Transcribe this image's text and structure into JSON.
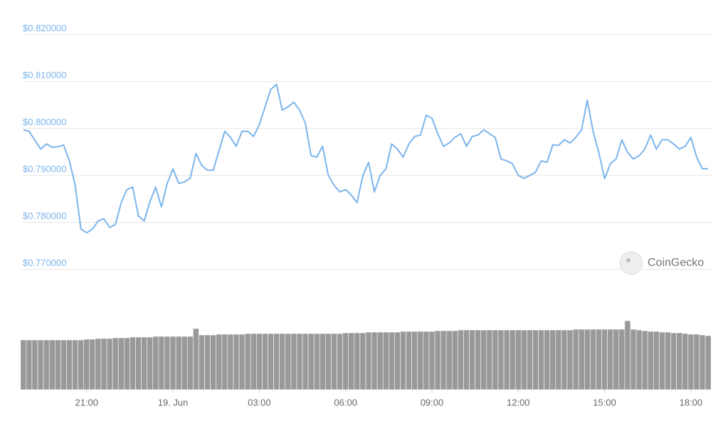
{
  "chart_data": {
    "type": "line",
    "watermark": "CoinGecko",
    "xlim": [
      18.78,
      42.72
    ],
    "xticks": [
      {
        "value": 21,
        "label": "21:00"
      },
      {
        "value": 24,
        "label": "19. Jun"
      },
      {
        "value": 27,
        "label": "03:00"
      },
      {
        "value": 30,
        "label": "06:00"
      },
      {
        "value": 33,
        "label": "09:00"
      },
      {
        "value": 36,
        "label": "12:00"
      },
      {
        "value": 39,
        "label": "15:00"
      },
      {
        "value": 42,
        "label": "18:00"
      }
    ],
    "ylim": [
      0.7677,
      0.8222
    ],
    "yticks": [
      {
        "value": 0.77,
        "label": "$0.770000"
      },
      {
        "value": 0.78,
        "label": "$0.780000"
      },
      {
        "value": 0.79,
        "label": "$0.790000"
      },
      {
        "value": 0.8,
        "label": "$0.800000"
      },
      {
        "value": 0.81,
        "label": "$0.810000"
      },
      {
        "value": 0.82,
        "label": "$0.820000"
      }
    ],
    "y2lim": [
      0,
      100
    ],
    "grid": true,
    "x": [
      18.8,
      19.0,
      19.2,
      19.4,
      19.6,
      19.8,
      20.0,
      20.2,
      20.4,
      20.6,
      20.8,
      21.0,
      21.2,
      21.4,
      21.6,
      21.8,
      22.0,
      22.2,
      22.4,
      22.6,
      22.8,
      23.0,
      23.2,
      23.4,
      23.6,
      23.8,
      24.0,
      24.2,
      24.4,
      24.6,
      24.8,
      25.0,
      25.2,
      25.4,
      25.6,
      25.8,
      26.0,
      26.2,
      26.4,
      26.6,
      26.8,
      27.0,
      27.2,
      27.4,
      27.6,
      27.8,
      28.0,
      28.2,
      28.4,
      28.6,
      28.8,
      29.0,
      29.2,
      29.4,
      29.6,
      29.8,
      30.0,
      30.2,
      30.4,
      30.6,
      30.8,
      31.0,
      31.2,
      31.4,
      31.6,
      31.8,
      32.0,
      32.2,
      32.4,
      32.6,
      32.8,
      33.0,
      33.2,
      33.4,
      33.6,
      33.8,
      34.0,
      34.2,
      34.4,
      34.6,
      34.8,
      35.0,
      35.2,
      35.4,
      35.6,
      35.8,
      36.0,
      36.2,
      36.4,
      36.6,
      36.8,
      37.0,
      37.2,
      37.4,
      37.6,
      37.8,
      38.0,
      38.2,
      38.4,
      38.6,
      38.8,
      39.0,
      39.2,
      39.4,
      39.6,
      39.8,
      40.0,
      40.2,
      40.4,
      40.6,
      40.8,
      41.0,
      41.2,
      41.4,
      41.6,
      41.8,
      42.0,
      42.2,
      42.4,
      42.6
    ],
    "series": [
      {
        "color": "#7cb5ec",
        "values": [
          0.7997,
          0.7994,
          0.7975,
          0.7956,
          0.7967,
          0.796,
          0.7961,
          0.7965,
          0.7931,
          0.7879,
          0.7786,
          0.7778,
          0.7786,
          0.7803,
          0.7808,
          0.7789,
          0.7796,
          0.7842,
          0.787,
          0.7875,
          0.7814,
          0.7803,
          0.7844,
          0.7875,
          0.7833,
          0.7883,
          0.7914,
          0.7883,
          0.7886,
          0.7894,
          0.7947,
          0.7921,
          0.7911,
          0.7911,
          0.7953,
          0.7994,
          0.7981,
          0.7962,
          0.7994,
          0.7994,
          0.7983,
          0.8008,
          0.8046,
          0.8083,
          0.8094,
          0.8039,
          0.8046,
          0.8056,
          0.8039,
          0.8011,
          0.7942,
          0.7939,
          0.7962,
          0.79,
          0.7879,
          0.7865,
          0.787,
          0.7858,
          0.7842,
          0.79,
          0.7928,
          0.7865,
          0.79,
          0.7914,
          0.7967,
          0.7956,
          0.7939,
          0.7967,
          0.7983,
          0.7986,
          0.8028,
          0.8022,
          0.7989,
          0.7962,
          0.7969,
          0.7981,
          0.7989,
          0.7962,
          0.7983,
          0.7986,
          0.7997,
          0.7989,
          0.7981,
          0.7935,
          0.7931,
          0.7925,
          0.79,
          0.7894,
          0.79,
          0.7907,
          0.7931,
          0.7928,
          0.7965,
          0.7964,
          0.7976,
          0.7969,
          0.7981,
          0.7997,
          0.806,
          0.7994,
          0.7949,
          0.7893,
          0.7925,
          0.7935,
          0.7976,
          0.7949,
          0.7935,
          0.7942,
          0.7956,
          0.7986,
          0.7956,
          0.7976,
          0.7976,
          0.7967,
          0.7956,
          0.7962,
          0.7981,
          0.7939,
          0.7914,
          0.7914
        ]
      },
      {
        "color": "#999999",
        "axis": "y2",
        "values": [
          70,
          70,
          70,
          70,
          70,
          70,
          70,
          70,
          70,
          70,
          70,
          71,
          71,
          72,
          72,
          72,
          73,
          73,
          73,
          74,
          74,
          74,
          74,
          75,
          75,
          75,
          75,
          75,
          75,
          75,
          86,
          77,
          77,
          77,
          78,
          78,
          78,
          78,
          78,
          79,
          79,
          79,
          79,
          79,
          79,
          79,
          79,
          79,
          79,
          79,
          79,
          79,
          79,
          79,
          79,
          79,
          80,
          80,
          80,
          80,
          81,
          81,
          81,
          81,
          81,
          81,
          82,
          82,
          82,
          82,
          82,
          82,
          83,
          83,
          83,
          83,
          84,
          84,
          84,
          84,
          84,
          84,
          84,
          84,
          84,
          84,
          84,
          84,
          84,
          84,
          84,
          84,
          84,
          84,
          84,
          84,
          85,
          85,
          85,
          85,
          85,
          85,
          85,
          85,
          85,
          97,
          85,
          84,
          83,
          82,
          82,
          81,
          81,
          80,
          80,
          79,
          78,
          78,
          77,
          76
        ]
      }
    ]
  }
}
